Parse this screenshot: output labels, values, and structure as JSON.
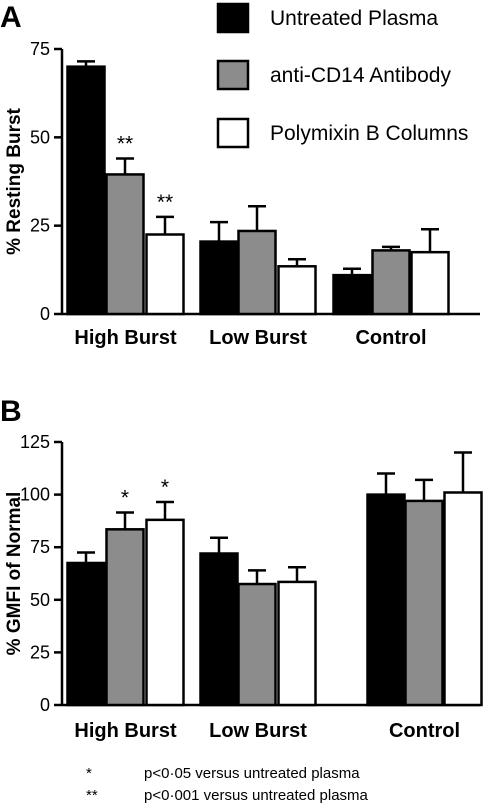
{
  "legend": [
    {
      "label": "Untreated Plasma",
      "color": "#000000"
    },
    {
      "label": "anti-CD14 Antibody",
      "color": "#8c8c8c"
    },
    {
      "label": "Polymixin B Columns",
      "color": "#ffffff"
    }
  ],
  "chart_data": [
    {
      "panel": "A",
      "type": "bar",
      "ylabel": "% Resting Burst",
      "ylim": [
        0,
        75
      ],
      "yticks": [
        0,
        25,
        50,
        75
      ],
      "categories": [
        "High Burst",
        "Low Burst",
        "Control"
      ],
      "series": [
        {
          "name": "Untreated Plasma",
          "values": [
            70,
            20.5,
            11
          ],
          "errors": [
            1.5,
            5.5,
            1.8
          ]
        },
        {
          "name": "anti-CD14 Antibody",
          "values": [
            39.5,
            23.5,
            18
          ],
          "errors": [
            4.5,
            7,
            1
          ]
        },
        {
          "name": "Polymixin B Columns",
          "values": [
            22.5,
            13.5,
            17.5
          ],
          "errors": [
            5,
            2,
            6.5
          ]
        }
      ],
      "significance": [
        [
          "",
          "",
          ""
        ],
        [
          "**",
          "",
          ""
        ],
        [
          "**",
          "",
          ""
        ]
      ]
    },
    {
      "panel": "B",
      "type": "bar",
      "ylabel": "% GMFI of Normal",
      "ylim": [
        0,
        125
      ],
      "yticks": [
        0,
        25,
        50,
        75,
        100,
        125
      ],
      "categories": [
        "High Burst",
        "Low Burst",
        "Control"
      ],
      "series": [
        {
          "name": "Untreated Plasma",
          "values": [
            67.5,
            72,
            100
          ],
          "errors": [
            5,
            7.5,
            10
          ]
        },
        {
          "name": "anti-CD14 Antibody",
          "values": [
            83.5,
            57.5,
            97
          ],
          "errors": [
            8,
            6.5,
            10
          ]
        },
        {
          "name": "Polymixin B Columns",
          "values": [
            88,
            58.5,
            101
          ],
          "errors": [
            8.5,
            7,
            19
          ]
        }
      ],
      "significance": [
        [
          "",
          "",
          ""
        ],
        [
          "*",
          "",
          ""
        ],
        [
          "*",
          "",
          ""
        ]
      ]
    }
  ],
  "footnotes": [
    {
      "symbol": "*",
      "text": "p<0·05 versus untreated plasma"
    },
    {
      "symbol": "**",
      "text": "p<0·001 versus untreated plasma"
    }
  ]
}
